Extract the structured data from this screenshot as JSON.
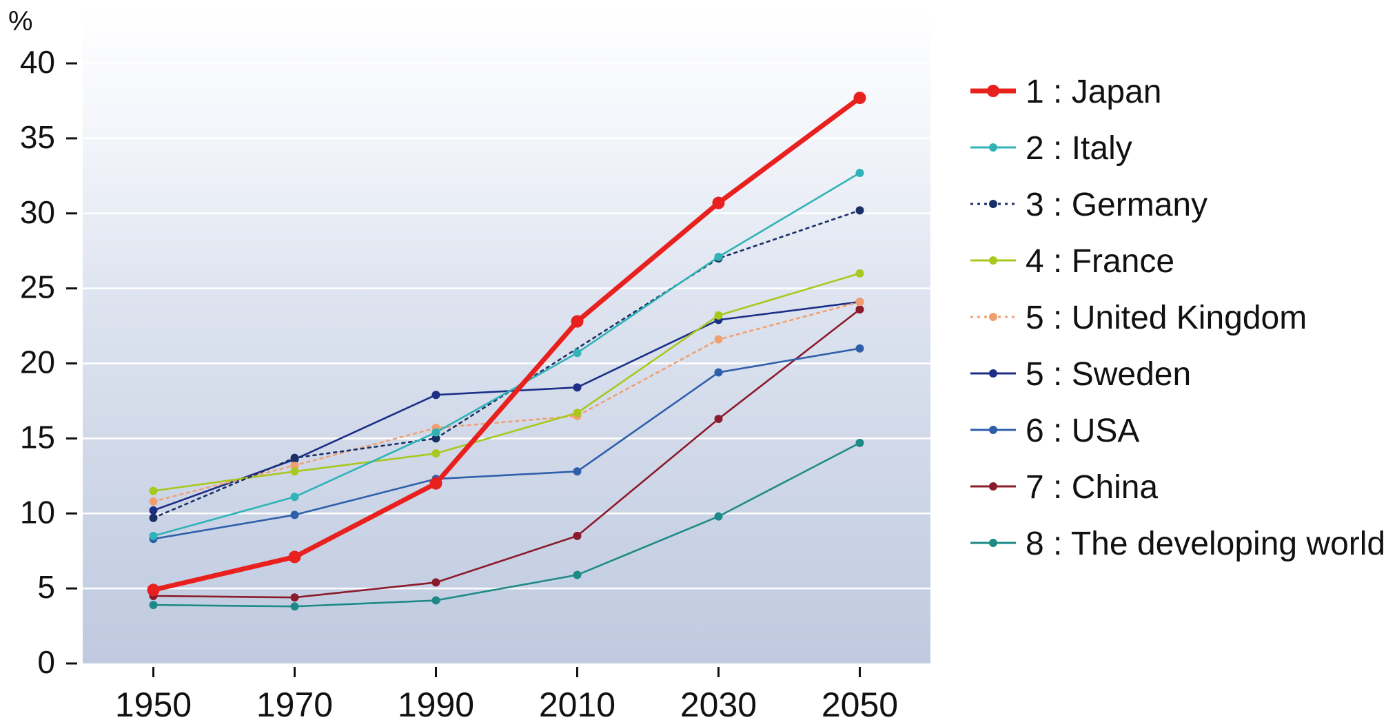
{
  "chart_data": {
    "type": "line",
    "title": "",
    "xlabel": "",
    "ylabel": "%",
    "x": [
      1950,
      1970,
      1990,
      2010,
      2030,
      2050
    ],
    "x_tick_labels": [
      "1950",
      "1970",
      "1990",
      "2010",
      "2030",
      "2050"
    ],
    "xlim": [
      1940,
      2060
    ],
    "ylim": [
      0,
      40
    ],
    "y_ticks": [
      0,
      5,
      10,
      15,
      20,
      25,
      30,
      35,
      40
    ],
    "y_tick_labels": [
      "0",
      "5",
      "10",
      "15",
      "20",
      "25",
      "30",
      "35",
      "40"
    ],
    "grid": "horizontal",
    "legend_position": "right",
    "series": [
      {
        "name": "1 : Japan",
        "color": "#e8201e",
        "style": "solid",
        "weight": "heavy",
        "values": [
          4.9,
          7.1,
          12.0,
          22.8,
          30.7,
          37.7
        ]
      },
      {
        "name": "2 : Italy",
        "color": "#2fb3b6",
        "style": "solid",
        "weight": "normal",
        "values": [
          8.5,
          11.1,
          15.4,
          20.7,
          27.1,
          32.7
        ]
      },
      {
        "name": "3 : Germany",
        "color": "#1a2f66",
        "style": "dotted",
        "weight": "normal",
        "values": [
          9.7,
          13.7,
          15.0,
          null,
          27.0,
          30.2
        ]
      },
      {
        "name": "4 : France",
        "color": "#a8c81e",
        "style": "solid",
        "weight": "normal",
        "values": [
          11.5,
          12.8,
          14.0,
          16.7,
          23.2,
          26.0
        ]
      },
      {
        "name": "5 : United Kingdom",
        "color": "#f0a070",
        "style": "dotted",
        "weight": "normal",
        "values": [
          10.8,
          13.2,
          15.7,
          16.5,
          21.6,
          24.1
        ]
      },
      {
        "name": "5 : Sweden",
        "color": "#1c2e86",
        "style": "solid",
        "weight": "normal",
        "values": [
          10.2,
          13.6,
          17.9,
          18.4,
          22.9,
          24.1
        ]
      },
      {
        "name": "6 : USA",
        "color": "#2e5faa",
        "style": "solid",
        "weight": "normal",
        "values": [
          8.3,
          9.9,
          12.3,
          12.8,
          19.4,
          21.0
        ]
      },
      {
        "name": "7 : China",
        "color": "#8b1a2a",
        "style": "solid",
        "weight": "normal",
        "values": [
          4.5,
          4.4,
          5.4,
          8.5,
          16.3,
          23.6
        ]
      },
      {
        "name": "8 : The developing world",
        "color": "#1e8a87",
        "style": "solid",
        "weight": "normal",
        "values": [
          3.9,
          3.8,
          4.2,
          5.9,
          9.8,
          14.7
        ]
      }
    ]
  }
}
